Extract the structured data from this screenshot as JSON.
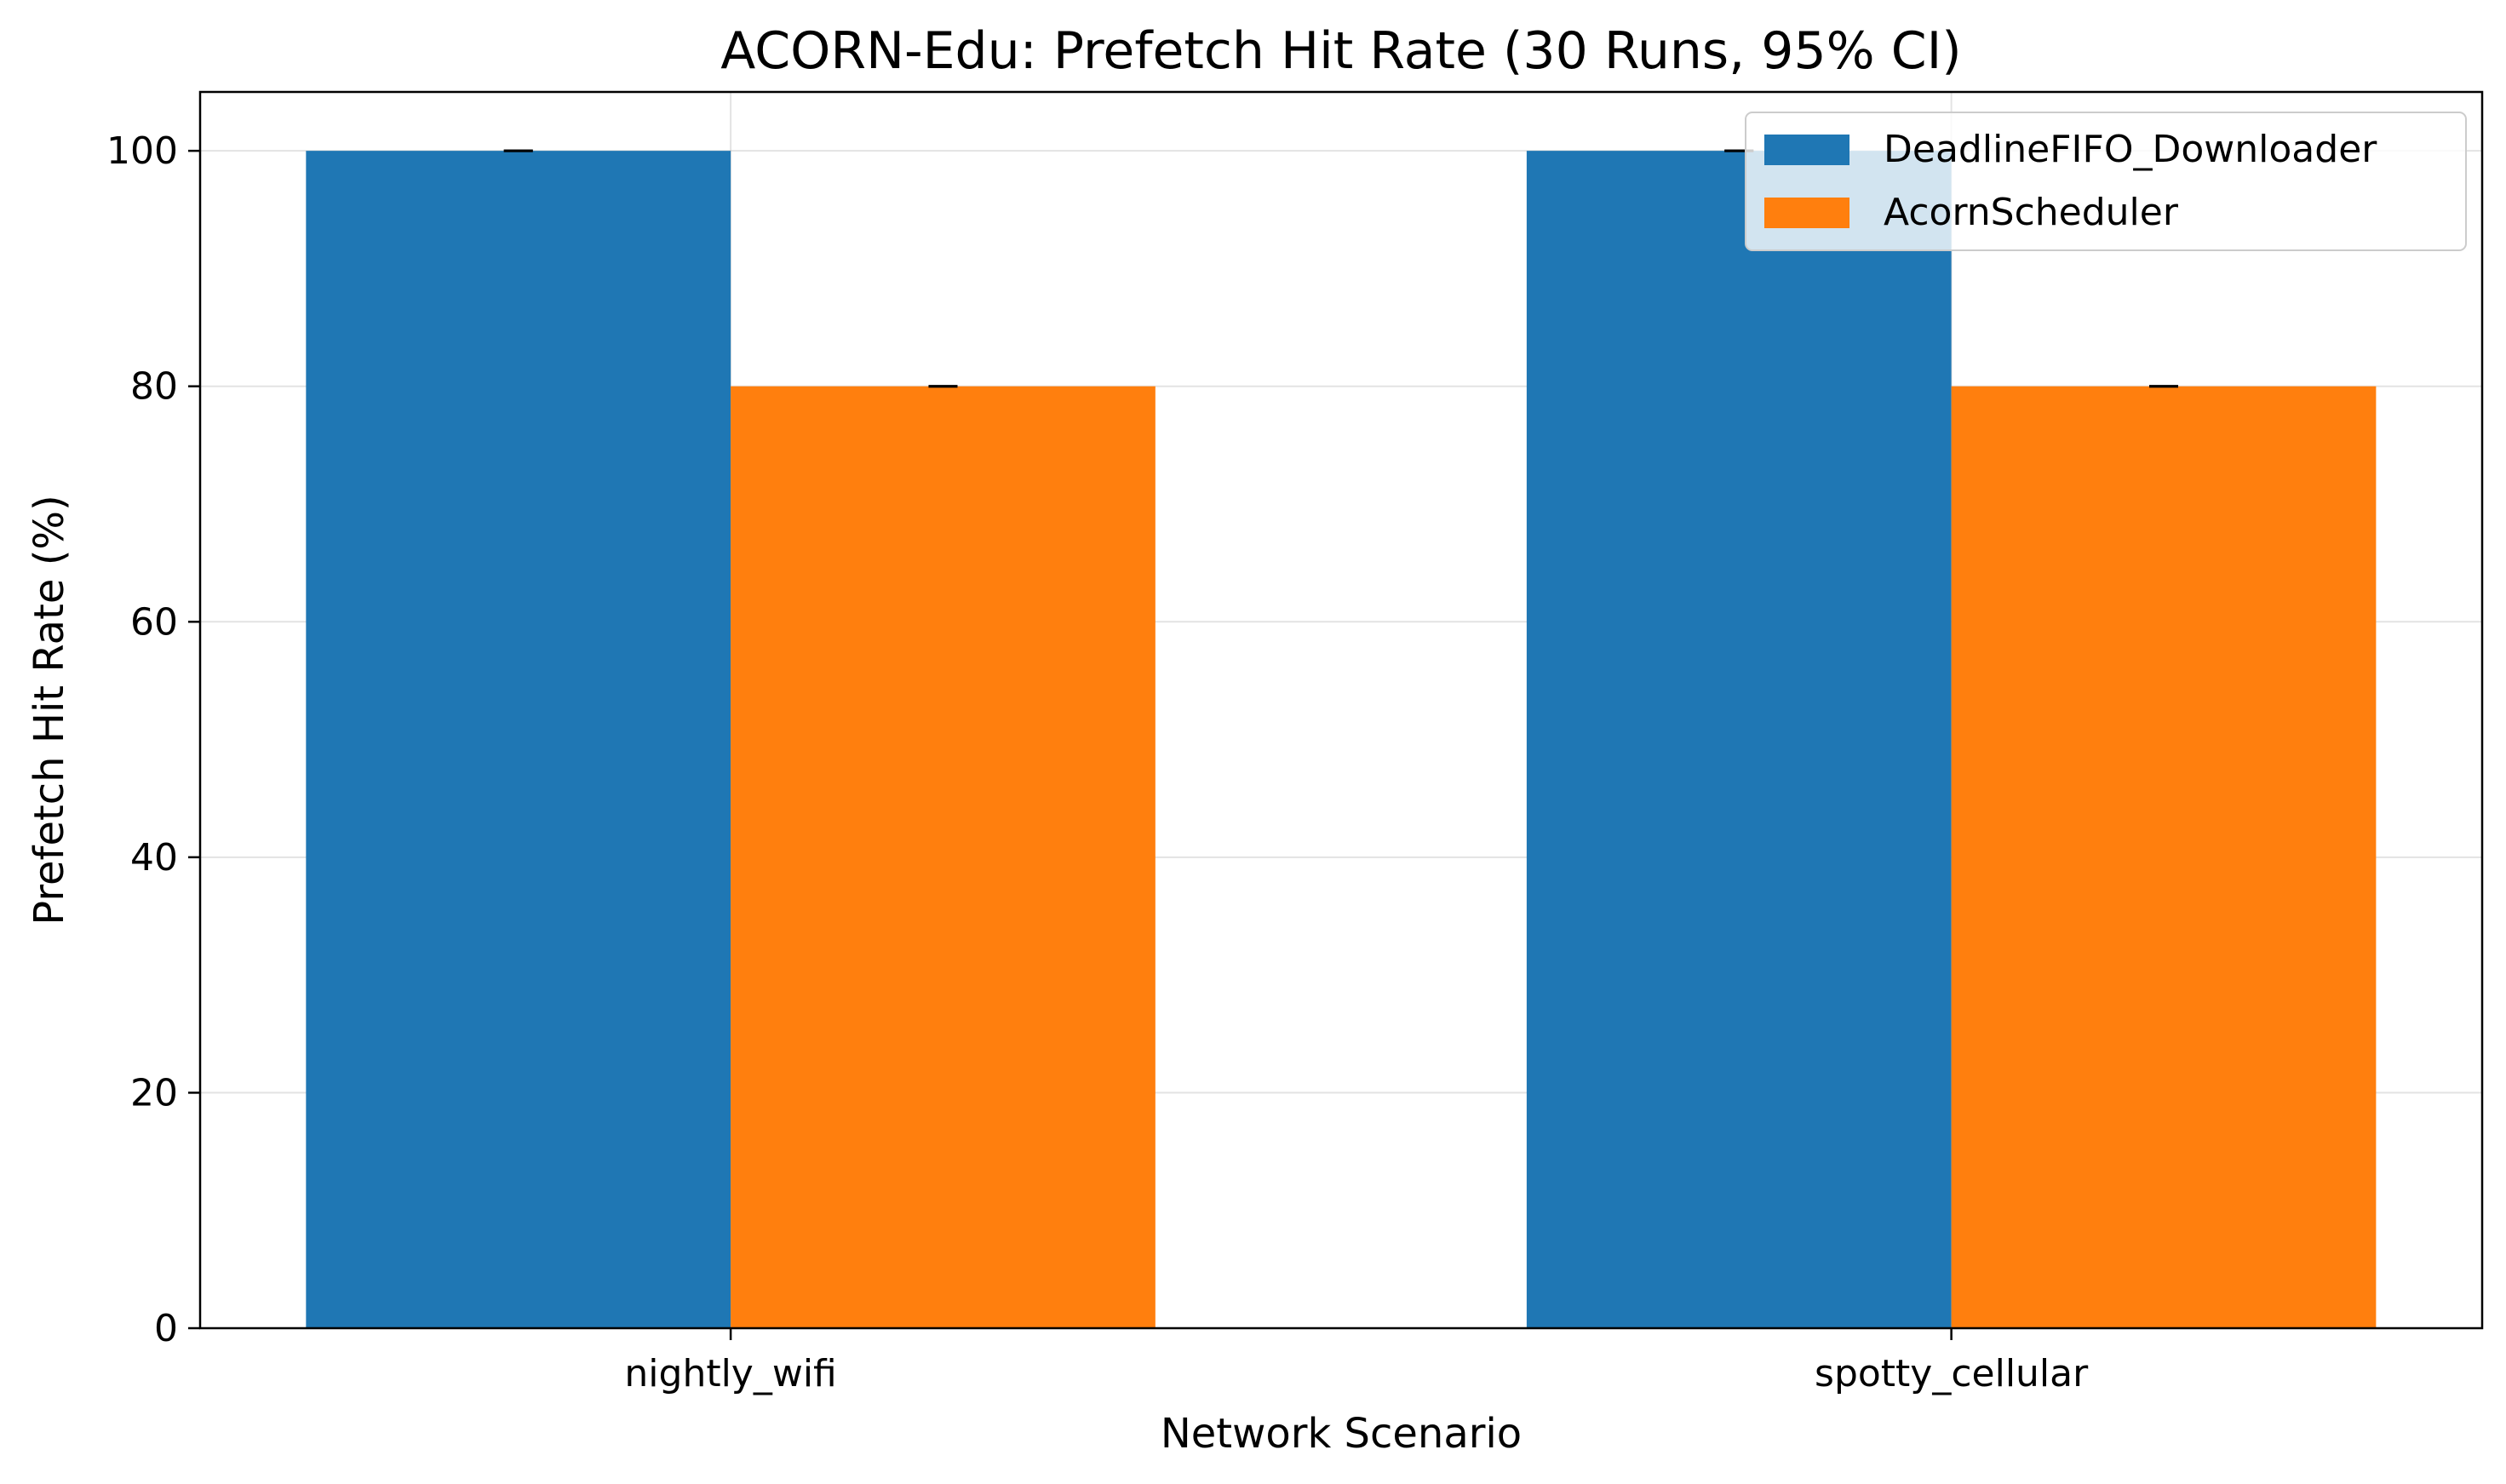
{
  "chart_data": {
    "type": "bar",
    "title": "ACORN-Edu: Prefetch Hit Rate (30 Runs, 95% CI)",
    "xlabel": "Network Scenario",
    "ylabel": "Prefetch Hit Rate (%)",
    "categories": [
      "nightly_wifi",
      "spotty_cellular"
    ],
    "series": [
      {
        "name": "DeadlineFIFO_Downloader",
        "values": [
          100,
          100
        ],
        "ci": [
          0,
          0
        ],
        "color": "#1f77b4"
      },
      {
        "name": "AcornScheduler",
        "values": [
          80,
          80
        ],
        "ci": [
          0,
          0
        ],
        "color": "#ff7f0e"
      }
    ],
    "ylim": [
      0,
      105
    ],
    "yticks": [
      0,
      20,
      40,
      60,
      80,
      100
    ],
    "grid": true,
    "legend_position": "top-right"
  }
}
